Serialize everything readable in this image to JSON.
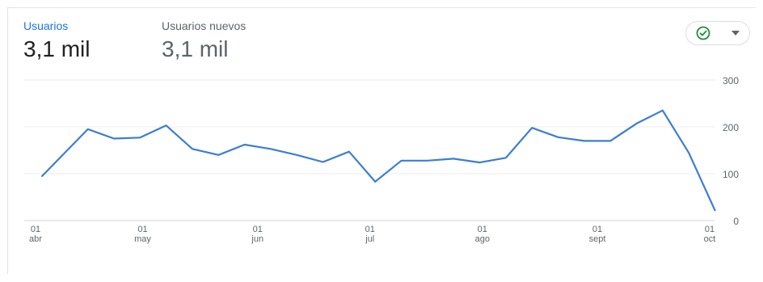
{
  "metrics": [
    {
      "label": "Usuarios",
      "value": "3,1 mil"
    },
    {
      "label": "Usuarios nuevos",
      "value": "3,1 mil"
    }
  ],
  "controls": {
    "compare_icon": "check-circle-icon",
    "dropdown_icon": "caret-down-icon",
    "accent": "#1e8e3e"
  },
  "chart_data": {
    "type": "line",
    "title": "",
    "xlabel": "",
    "ylabel": "",
    "ylim": [
      0,
      300
    ],
    "yticks": [
      "0",
      "100",
      "200",
      "300"
    ],
    "grid": true,
    "line_color": "#3b7ed0",
    "x_ticks": [
      {
        "day": "01",
        "month": "abr",
        "x": 0
      },
      {
        "day": "01",
        "month": "may",
        "x": 4.1
      },
      {
        "day": "01",
        "month": "jun",
        "x": 8.5
      },
      {
        "day": "01",
        "month": "jul",
        "x": 12.8
      },
      {
        "day": "01",
        "month": "ago",
        "x": 17.1
      },
      {
        "day": "01",
        "month": "sept",
        "x": 21.5
      },
      {
        "day": "01",
        "month": "oct",
        "x": 25.8
      }
    ],
    "x": [
      0.25,
      2.0,
      3.0,
      4.0,
      5.0,
      6.0,
      7.0,
      8.0,
      9.0,
      10.0,
      11.0,
      12.0,
      13.0,
      14.0,
      15.0,
      16.0,
      17.0,
      18.0,
      19.0,
      20.0,
      21.0,
      22.0,
      23.0,
      24.0,
      25.0,
      26.0
    ],
    "series": [
      {
        "values": [
          95,
          195,
          175,
          177,
          203,
          153,
          140,
          162,
          153,
          140,
          125,
          147,
          83,
          128,
          128,
          132,
          124,
          134,
          198,
          178,
          170,
          170,
          207,
          235,
          145,
          22
        ]
      }
    ]
  }
}
